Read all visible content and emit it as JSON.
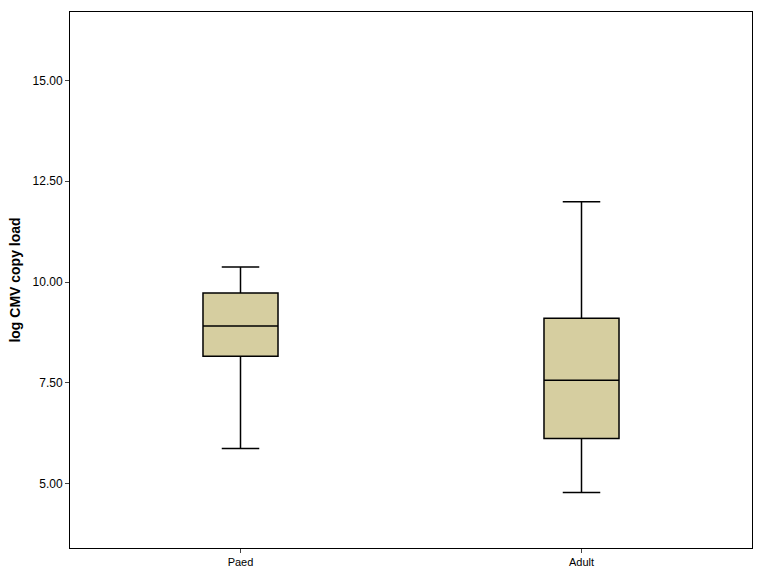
{
  "chart_data": {
    "type": "box",
    "y_label": "log CMV copy load",
    "categories": [
      "Paed",
      "Adult"
    ],
    "min": [
      5.87,
      4.78
    ],
    "q1": [
      8.16,
      6.12
    ],
    "median": [
      8.91,
      7.56
    ],
    "q3": [
      9.73,
      9.1
    ],
    "max": [
      10.37,
      11.99
    ],
    "color": "#d6cea0",
    "ylim": [
      3.4,
      16.7
    ],
    "yticks": [
      {
        "value": 5,
        "label": "5.00"
      },
      {
        "value": 7.5,
        "label": "7.50"
      },
      {
        "value": 10,
        "label": "10.00"
      },
      {
        "value": 12.5,
        "label": "12.50"
      },
      {
        "value": 15,
        "label": "15.00"
      }
    ],
    "grid": false
  }
}
